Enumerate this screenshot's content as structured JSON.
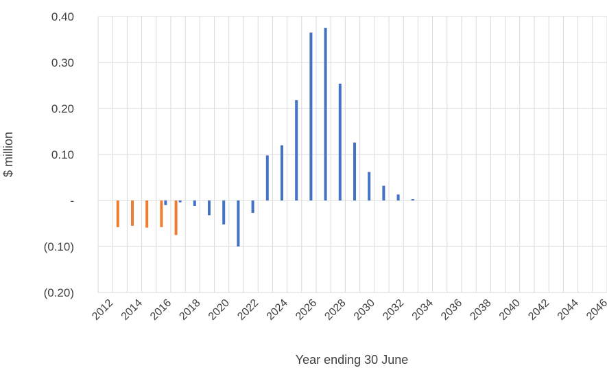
{
  "chart_data": {
    "type": "bar",
    "title": "",
    "xlabel": "Year ending 30 June",
    "ylabel": "$ million",
    "ylim": [
      -0.2,
      0.4
    ],
    "grid": true,
    "legend": "none",
    "y_ticks": [
      "0.40",
      "0.30",
      "0.20",
      "0.10",
      "-",
      "(0.10)",
      "(0.20)"
    ],
    "x_tick_labels": [
      "2012",
      "2014",
      "2016",
      "2018",
      "2020",
      "2022",
      "2024",
      "2026",
      "2028",
      "2030",
      "2032",
      "2034",
      "2036",
      "2038",
      "2040",
      "2042",
      "2044",
      "2046"
    ],
    "categories": [
      2012,
      2013,
      2014,
      2015,
      2016,
      2017,
      2018,
      2019,
      2020,
      2021,
      2022,
      2023,
      2024,
      2025,
      2026,
      2027,
      2028,
      2029,
      2030,
      2031,
      2032,
      2033,
      2034,
      2035,
      2036,
      2037,
      2038,
      2039,
      2040,
      2041,
      2042,
      2043,
      2044,
      2045,
      2046
    ],
    "series": [
      {
        "color": "#ed7d31",
        "values": [
          null,
          -0.058,
          -0.055,
          -0.059,
          -0.058,
          -0.075,
          null,
          null,
          null,
          null,
          null,
          null,
          null,
          null,
          null,
          null,
          null,
          null,
          null,
          null,
          null,
          null,
          null,
          null,
          null,
          null,
          null,
          null,
          null,
          null,
          null,
          null,
          null,
          null,
          null
        ]
      },
      {
        "color": "#4472c4",
        "values": [
          null,
          null,
          null,
          null,
          -0.01,
          -0.004,
          -0.012,
          -0.032,
          -0.052,
          -0.1,
          -0.027,
          0.098,
          0.12,
          0.218,
          0.365,
          0.375,
          0.254,
          0.126,
          0.062,
          0.032,
          0.013,
          0.003,
          0,
          0,
          0,
          0,
          0,
          0,
          0,
          0,
          0,
          0,
          0,
          0,
          0
        ]
      }
    ]
  }
}
